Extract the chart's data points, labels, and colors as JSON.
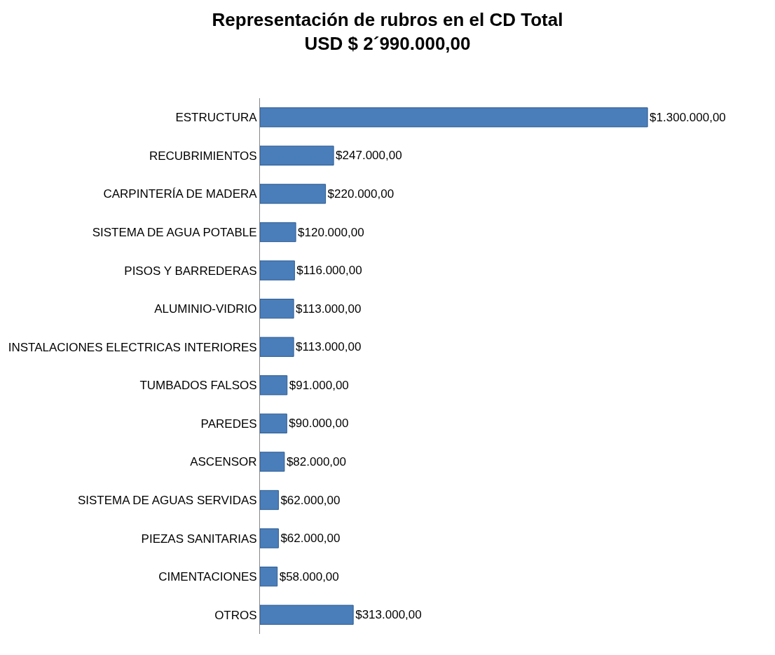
{
  "chart_data": {
    "type": "bar",
    "orientation": "horizontal",
    "title": "Representación de rubros en el CD Total\nUSD $ 2´990.000,00",
    "categories": [
      "ESTRUCTURA",
      "RECUBRIMIENTOS",
      "CARPINTERÍA DE MADERA",
      "SISTEMA DE AGUA POTABLE",
      "PISOS Y BARREDERAS",
      "ALUMINIO-VIDRIO",
      "INSTALACIONES ELECTRICAS INTERIORES",
      "TUMBADOS FALSOS",
      "PAREDES",
      "ASCENSOR",
      "SISTEMA DE AGUAS SERVIDAS",
      "PIEZAS SANITARIAS",
      "CIMENTACIONES",
      "OTROS"
    ],
    "values": [
      1300000,
      247000,
      220000,
      120000,
      116000,
      113000,
      113000,
      91000,
      90000,
      82000,
      62000,
      62000,
      58000,
      313000
    ],
    "value_labels": [
      "$1.300.000,00",
      "$247.000,00",
      "$220.000,00",
      "$120.000,00",
      "$116.000,00",
      "$113.000,00",
      "$113.000,00",
      "$91.000,00",
      "$90.000,00",
      "$82.000,00",
      "$62.000,00",
      "$62.000,00",
      "$58.000,00",
      "$313.000,00"
    ],
    "color": "#4a7ebb",
    "legend": false
  }
}
